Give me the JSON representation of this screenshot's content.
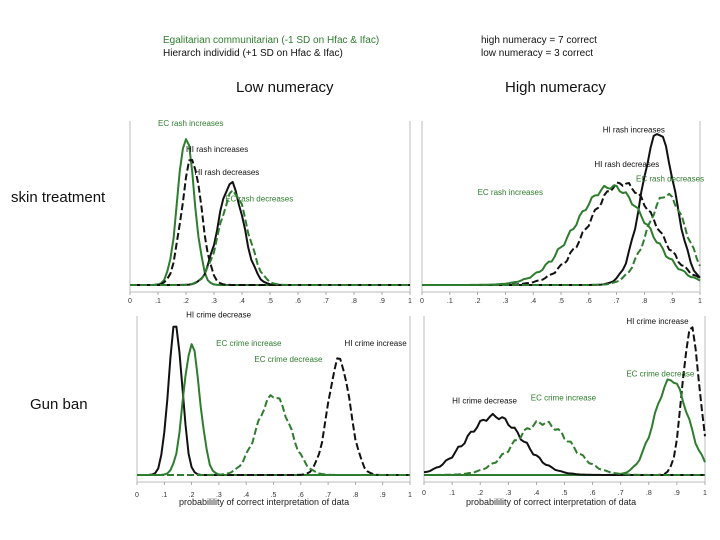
{
  "legend_left": {
    "line1": "Egalitarian communitarian (-1 SD on Hfac & Ifac)",
    "line2": "Hierarch individid (+1 SD on Hfac & Ifac)",
    "line1_color": "#2e7d2e",
    "line2_color": "#111111"
  },
  "legend_right": {
    "line1": "high numeracy = 7 correct",
    "line2": "low numeracy = 3 correct"
  },
  "columns": {
    "left": "Low numeracy",
    "right": "High numeracy"
  },
  "rows": {
    "top": "skin treatment",
    "bottom": "Gun ban"
  },
  "xlabel": "probabilility of correct interpretation of data",
  "chart_data": [
    {
      "type": "line",
      "panel": "skin treatment / low numeracy",
      "xlim": [
        0,
        1
      ],
      "xticks": [
        "0",
        ".1",
        ".2",
        ".3",
        ".4",
        ".5",
        ".6",
        ".7",
        ".8",
        ".9",
        "1"
      ],
      "series": [
        {
          "name": "EC rash increases",
          "color": "#2e7d2e",
          "dash": "solid",
          "mean": 0.2,
          "sd": 0.03,
          "peak": 0.9
        },
        {
          "name": "HI rash increases",
          "color": "#111111",
          "dash": "dash",
          "mean": 0.22,
          "sd": 0.035,
          "peak": 0.77
        },
        {
          "name": "HI rash decreases",
          "color": "#111111",
          "dash": "solid",
          "mean": 0.36,
          "sd": 0.045,
          "peak": 0.62
        },
        {
          "name": "EC rash decreases",
          "color": "#2e7d2e",
          "dash": "dash",
          "mean": 0.37,
          "sd": 0.05,
          "peak": 0.57
        }
      ],
      "annotations": [
        {
          "text": "EC rash increases",
          "color": "#2e7d2e",
          "at": [
            0.1,
            0.97
          ]
        },
        {
          "text": "HI rash increases",
          "color": "#111111",
          "at": [
            0.2,
            0.81
          ]
        },
        {
          "text": "HI rash decreases",
          "color": "#111111",
          "at": [
            0.23,
            0.67
          ]
        },
        {
          "text": "EC rash decreases",
          "color": "#2e7d2e",
          "at": [
            0.34,
            0.51
          ]
        }
      ]
    },
    {
      "type": "line",
      "panel": "skin treatment / high numeracy",
      "xlim": [
        0,
        1
      ],
      "xticks": [
        "0",
        ".1",
        ".2",
        ".3",
        ".4",
        ".5",
        ".6",
        ".7",
        ".8",
        ".9",
        "1"
      ],
      "series": [
        {
          "name": "HI rash increases",
          "color": "#111111",
          "dash": "solid",
          "mean": 0.85,
          "sd": 0.06,
          "peak": 0.93
        },
        {
          "name": "HI rash decreases",
          "color": "#111111",
          "dash": "dash",
          "mean": 0.72,
          "sd": 0.12,
          "peak": 0.62
        },
        {
          "name": "EC rash increases",
          "color": "#2e7d2e",
          "dash": "solid",
          "mean": 0.68,
          "sd": 0.13,
          "peak": 0.6
        },
        {
          "name": "EC rash decreases",
          "color": "#2e7d2e",
          "dash": "dash",
          "mean": 0.88,
          "sd": 0.07,
          "peak": 0.55
        }
      ],
      "annotations": [
        {
          "text": "HI rash increases",
          "color": "#111111",
          "at": [
            0.65,
            0.93
          ]
        },
        {
          "text": "HI rash decreases",
          "color": "#111111",
          "at": [
            0.62,
            0.72
          ]
        },
        {
          "text": "EC rash increases",
          "color": "#2e7d2e",
          "at": [
            0.2,
            0.55
          ]
        },
        {
          "text": "EC rash decreases",
          "color": "#2e7d2e",
          "at": [
            0.77,
            0.63
          ]
        }
      ]
    },
    {
      "type": "line",
      "panel": "gun ban / low numeracy",
      "xlim": [
        0,
        1
      ],
      "xticks": [
        "0",
        ".1",
        ".2",
        ".3",
        ".4",
        ".5",
        ".6",
        ".7",
        ".8",
        ".9",
        "1"
      ],
      "series": [
        {
          "name": "HI crime decrease",
          "color": "#111111",
          "dash": "solid",
          "mean": 0.14,
          "sd": 0.025,
          "peak": 0.95
        },
        {
          "name": "EC crime increase",
          "color": "#2e7d2e",
          "dash": "solid",
          "mean": 0.2,
          "sd": 0.03,
          "peak": 0.82
        },
        {
          "name": "HI crime increase",
          "color": "#111111",
          "dash": "dash",
          "mean": 0.74,
          "sd": 0.04,
          "peak": 0.73
        },
        {
          "name": "EC crime decrease",
          "color": "#2e7d2e",
          "dash": "dash",
          "mean": 0.5,
          "sd": 0.06,
          "peak": 0.5
        }
      ],
      "annotations": [
        {
          "text": "HI crime decrease",
          "color": "#111111",
          "at": [
            0.18,
            0.99
          ]
        },
        {
          "text": "EC crime increase",
          "color": "#2e7d2e",
          "at": [
            0.29,
            0.81
          ]
        },
        {
          "text": "HI crime increase",
          "color": "#111111",
          "at": [
            0.76,
            0.81
          ]
        },
        {
          "text": "EC crime decrease",
          "color": "#2e7d2e",
          "at": [
            0.43,
            0.71
          ]
        }
      ]
    },
    {
      "type": "line",
      "panel": "gun ban / high numeracy",
      "xlim": [
        0,
        1
      ],
      "xticks": [
        "0",
        ".1",
        ".2",
        ".3",
        ".4",
        ".5",
        ".6",
        ".7",
        ".8",
        ".9",
        "1"
      ],
      "series": [
        {
          "name": "HI crime increase",
          "color": "#111111",
          "dash": "dash",
          "mean": 0.95,
          "sd": 0.03,
          "peak": 0.93
        },
        {
          "name": "EC crime decrease",
          "color": "#2e7d2e",
          "dash": "solid",
          "mean": 0.88,
          "sd": 0.06,
          "peak": 0.6
        },
        {
          "name": "HI crime decrease",
          "color": "#111111",
          "dash": "solid",
          "mean": 0.25,
          "sd": 0.1,
          "peak": 0.37
        },
        {
          "name": "EC crime increase",
          "color": "#2e7d2e",
          "dash": "dash",
          "mean": 0.42,
          "sd": 0.1,
          "peak": 0.33
        }
      ],
      "annotations": [
        {
          "text": "HI crime increase",
          "color": "#111111",
          "at": [
            0.72,
            0.95
          ]
        },
        {
          "text": "EC crime decrease",
          "color": "#2e7d2e",
          "at": [
            0.72,
            0.62
          ]
        },
        {
          "text": "HI crime decrease",
          "color": "#111111",
          "at": [
            0.1,
            0.45
          ]
        },
        {
          "text": "EC crime increase",
          "color": "#2e7d2e",
          "at": [
            0.38,
            0.47
          ]
        }
      ]
    }
  ]
}
